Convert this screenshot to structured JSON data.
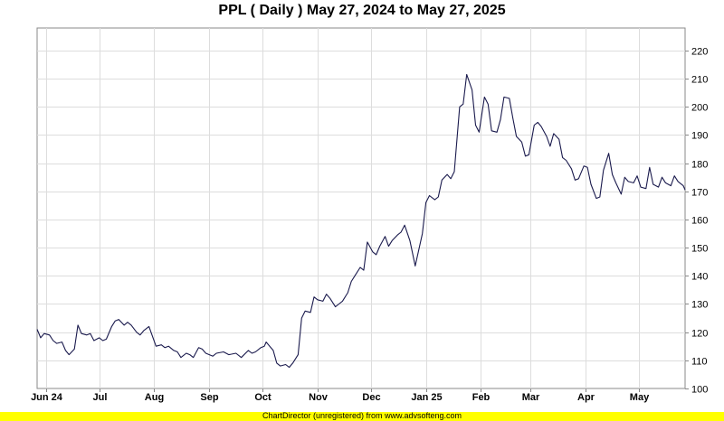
{
  "header": {
    "title": "PPL ( Daily ) May 27, 2024 to May 27, 2025"
  },
  "footer": {
    "text": "ChartDirector (unregistered) from www.advsofteng.com"
  },
  "colors": {
    "line": "#1a1a4d",
    "grid": "#dddddd",
    "border": "#888888",
    "footer_bg": "#ffff00"
  },
  "chart_data": {
    "type": "line",
    "title": "PPL ( Daily ) May 27, 2024 to May 27, 2025",
    "xlabel": "",
    "ylabel": "",
    "x_range": [
      "2024-05-27",
      "2025-05-27"
    ],
    "ylim": [
      100,
      228
    ],
    "y_ticks": [
      100,
      110,
      120,
      130,
      140,
      150,
      160,
      170,
      180,
      190,
      200,
      210,
      220
    ],
    "y_axis_side": "right",
    "x_ticks": [
      {
        "label": "Jun 24",
        "date": "2024-06-01"
      },
      {
        "label": "Jul",
        "date": "2024-07-01"
      },
      {
        "label": "Aug",
        "date": "2024-08-01"
      },
      {
        "label": "Sep",
        "date": "2024-09-01"
      },
      {
        "label": "Oct",
        "date": "2024-10-01"
      },
      {
        "label": "Nov",
        "date": "2024-11-01"
      },
      {
        "label": "Dec",
        "date": "2024-12-01"
      },
      {
        "label": "Jan 25",
        "date": "2025-01-01"
      },
      {
        "label": "Feb",
        "date": "2025-02-01"
      },
      {
        "label": "Mar",
        "date": "2025-03-01"
      },
      {
        "label": "Apr",
        "date": "2025-04-01"
      },
      {
        "label": "May",
        "date": "2025-05-01"
      }
    ],
    "grid": true,
    "series": [
      {
        "color": "#1a1a4d",
        "points": [
          [
            "2024-05-27",
            121.0
          ],
          [
            "2024-05-29",
            118.0
          ],
          [
            "2024-05-31",
            119.5
          ],
          [
            "2024-06-03",
            119.0
          ],
          [
            "2024-06-05",
            117.0
          ],
          [
            "2024-06-07",
            116.0
          ],
          [
            "2024-06-10",
            116.5
          ],
          [
            "2024-06-12",
            113.5
          ],
          [
            "2024-06-14",
            112.0
          ],
          [
            "2024-06-17",
            114.0
          ],
          [
            "2024-06-19",
            122.5
          ],
          [
            "2024-06-21",
            119.5
          ],
          [
            "2024-06-24",
            119.0
          ],
          [
            "2024-06-26",
            119.5
          ],
          [
            "2024-06-28",
            117.0
          ],
          [
            "2024-07-01",
            118.0
          ],
          [
            "2024-07-03",
            117.0
          ],
          [
            "2024-07-05",
            117.5
          ],
          [
            "2024-07-08",
            122.0
          ],
          [
            "2024-07-10",
            124.0
          ],
          [
            "2024-07-12",
            124.5
          ],
          [
            "2024-07-15",
            122.5
          ],
          [
            "2024-07-17",
            123.5
          ],
          [
            "2024-07-19",
            122.5
          ],
          [
            "2024-07-22",
            120.0
          ],
          [
            "2024-07-24",
            119.0
          ],
          [
            "2024-07-26",
            120.5
          ],
          [
            "2024-07-29",
            122.0
          ],
          [
            "2024-07-31",
            118.5
          ],
          [
            "2024-08-02",
            115.0
          ],
          [
            "2024-08-05",
            115.5
          ],
          [
            "2024-08-07",
            114.5
          ],
          [
            "2024-08-09",
            115.0
          ],
          [
            "2024-08-12",
            113.5
          ],
          [
            "2024-08-14",
            113.0
          ],
          [
            "2024-08-16",
            111.0
          ],
          [
            "2024-08-19",
            112.5
          ],
          [
            "2024-08-21",
            112.0
          ],
          [
            "2024-08-23",
            111.0
          ],
          [
            "2024-08-26",
            114.5
          ],
          [
            "2024-08-28",
            114.0
          ],
          [
            "2024-08-30",
            112.5
          ],
          [
            "2024-09-03",
            111.5
          ],
          [
            "2024-09-05",
            112.5
          ],
          [
            "2024-09-09",
            113.0
          ],
          [
            "2024-09-12",
            112.0
          ],
          [
            "2024-09-16",
            112.5
          ],
          [
            "2024-09-19",
            111.0
          ],
          [
            "2024-09-23",
            113.5
          ],
          [
            "2024-09-25",
            112.5
          ],
          [
            "2024-09-27",
            113.0
          ],
          [
            "2024-09-30",
            114.5
          ],
          [
            "2024-10-02",
            115.0
          ],
          [
            "2024-10-03",
            116.5
          ],
          [
            "2024-10-07",
            113.5
          ],
          [
            "2024-10-09",
            109.0
          ],
          [
            "2024-10-11",
            108.0
          ],
          [
            "2024-10-14",
            108.5
          ],
          [
            "2024-10-16",
            107.5
          ],
          [
            "2024-10-18",
            109.0
          ],
          [
            "2024-10-21",
            112.0
          ],
          [
            "2024-10-23",
            125.0
          ],
          [
            "2024-10-25",
            127.5
          ],
          [
            "2024-10-28",
            127.0
          ],
          [
            "2024-10-30",
            132.5
          ],
          [
            "2024-11-01",
            131.5
          ],
          [
            "2024-11-04",
            131.0
          ],
          [
            "2024-11-06",
            133.5
          ],
          [
            "2024-11-08",
            132.0
          ],
          [
            "2024-11-11",
            129.0
          ],
          [
            "2024-11-13",
            130.0
          ],
          [
            "2024-11-15",
            131.0
          ],
          [
            "2024-11-18",
            134.0
          ],
          [
            "2024-11-20",
            138.0
          ],
          [
            "2024-11-22",
            140.0
          ],
          [
            "2024-11-25",
            143.0
          ],
          [
            "2024-11-27",
            142.0
          ],
          [
            "2024-11-29",
            152.0
          ],
          [
            "2024-12-02",
            148.5
          ],
          [
            "2024-12-04",
            147.5
          ],
          [
            "2024-12-06",
            150.5
          ],
          [
            "2024-12-09",
            154.0
          ],
          [
            "2024-12-11",
            150.5
          ],
          [
            "2024-12-13",
            152.5
          ],
          [
            "2024-12-16",
            154.5
          ],
          [
            "2024-12-18",
            155.5
          ],
          [
            "2024-12-20",
            158.0
          ],
          [
            "2024-12-23",
            152.5
          ],
          [
            "2024-12-26",
            143.5
          ],
          [
            "2024-12-30",
            155.0
          ],
          [
            "2025-01-01",
            166.0
          ],
          [
            "2025-01-03",
            168.5
          ],
          [
            "2025-01-06",
            167.0
          ],
          [
            "2025-01-08",
            168.0
          ],
          [
            "2025-01-10",
            174.0
          ],
          [
            "2025-01-13",
            176.0
          ],
          [
            "2025-01-15",
            174.5
          ],
          [
            "2025-01-17",
            177.0
          ],
          [
            "2025-01-20",
            200.0
          ],
          [
            "2025-01-22",
            201.0
          ],
          [
            "2025-01-24",
            211.5
          ],
          [
            "2025-01-27",
            206.0
          ],
          [
            "2025-01-29",
            193.5
          ],
          [
            "2025-01-31",
            191.0
          ],
          [
            "2025-02-03",
            203.5
          ],
          [
            "2025-02-05",
            201.0
          ],
          [
            "2025-02-07",
            191.5
          ],
          [
            "2025-02-10",
            191.0
          ],
          [
            "2025-02-12",
            195.5
          ],
          [
            "2025-02-14",
            203.5
          ],
          [
            "2025-02-17",
            203.0
          ],
          [
            "2025-02-19",
            196.0
          ],
          [
            "2025-02-21",
            189.5
          ],
          [
            "2025-02-24",
            187.5
          ],
          [
            "2025-02-26",
            182.5
          ],
          [
            "2025-02-28",
            183.0
          ],
          [
            "2025-03-03",
            193.5
          ],
          [
            "2025-03-05",
            194.5
          ],
          [
            "2025-03-07",
            193.0
          ],
          [
            "2025-03-10",
            189.5
          ],
          [
            "2025-03-12",
            186.0
          ],
          [
            "2025-03-14",
            190.5
          ],
          [
            "2025-03-17",
            188.5
          ],
          [
            "2025-03-19",
            182.0
          ],
          [
            "2025-03-21",
            181.0
          ],
          [
            "2025-03-24",
            178.0
          ],
          [
            "2025-03-26",
            174.0
          ],
          [
            "2025-03-28",
            174.5
          ],
          [
            "2025-03-31",
            179.0
          ],
          [
            "2025-04-02",
            178.5
          ],
          [
            "2025-04-04",
            172.5
          ],
          [
            "2025-04-07",
            167.5
          ],
          [
            "2025-04-09",
            168.0
          ],
          [
            "2025-04-11",
            177.5
          ],
          [
            "2025-04-14",
            183.5
          ],
          [
            "2025-04-16",
            176.0
          ],
          [
            "2025-04-18",
            173.0
          ],
          [
            "2025-04-21",
            169.0
          ],
          [
            "2025-04-23",
            175.0
          ],
          [
            "2025-04-25",
            173.5
          ],
          [
            "2025-04-28",
            173.0
          ],
          [
            "2025-04-30",
            175.5
          ],
          [
            "2025-05-02",
            171.5
          ],
          [
            "2025-05-05",
            171.0
          ],
          [
            "2025-05-07",
            178.5
          ],
          [
            "2025-05-09",
            172.5
          ],
          [
            "2025-05-12",
            171.5
          ],
          [
            "2025-05-14",
            175.0
          ],
          [
            "2025-05-16",
            173.0
          ],
          [
            "2025-05-19",
            172.0
          ],
          [
            "2025-05-21",
            175.5
          ],
          [
            "2025-05-23",
            173.5
          ],
          [
            "2025-05-26",
            172.0
          ],
          [
            "2025-05-27",
            170.5
          ]
        ]
      }
    ]
  }
}
